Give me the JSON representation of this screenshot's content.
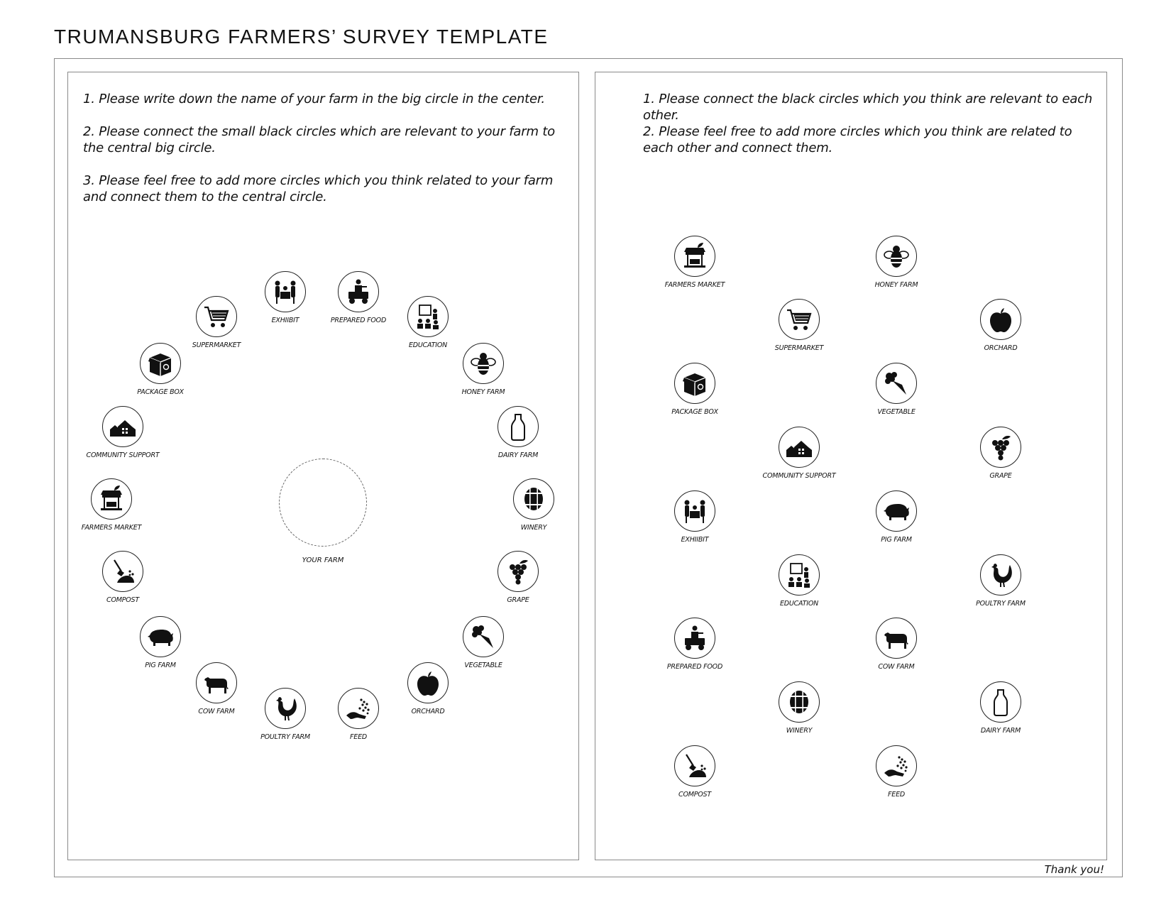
{
  "title": "TRUMANSBURG FARMERS’ SURVEY TEMPLATE",
  "left_panel": {
    "instructions": [
      "1. Please  write down the name of your farm in the big circle in the center.",
      "2. Please connect the small black circles which are relevant to your farm to the central big circle.",
      "3. Please feel free to add more circles which you think related to your farm and connect them to the central circle."
    ],
    "center_label": "YOUR FARM",
    "nodes": [
      {
        "label": "EXHIIBIT",
        "icon": "exhibit-icon"
      },
      {
        "label": "PREPARED FOOD",
        "icon": "prepared-food-icon"
      },
      {
        "label": "EDUCATION",
        "icon": "education-icon"
      },
      {
        "label": "HONEY FARM",
        "icon": "bee-icon"
      },
      {
        "label": "DAIRY FARM",
        "icon": "milk-bottle-icon"
      },
      {
        "label": "WINERY",
        "icon": "barrel-icon"
      },
      {
        "label": "GRAPE",
        "icon": "grape-icon"
      },
      {
        "label": "VEGETABLE",
        "icon": "vegetable-icon"
      },
      {
        "label": "ORCHARD",
        "icon": "apple-icon"
      },
      {
        "label": "FEED",
        "icon": "feed-icon"
      },
      {
        "label": "POULTRY FARM",
        "icon": "rooster-icon"
      },
      {
        "label": "COW FARM",
        "icon": "cow-icon"
      },
      {
        "label": "PIG FARM",
        "icon": "pig-icon"
      },
      {
        "label": "COMPOST",
        "icon": "compost-icon"
      },
      {
        "label": "FARMERS MARKET",
        "icon": "market-stall-icon"
      },
      {
        "label": "COMMUNITY SUPPORT",
        "icon": "houses-icon"
      },
      {
        "label": "PACKAGE BOX",
        "icon": "box-icon"
      },
      {
        "label": "SUPERMARKET",
        "icon": "cart-icon"
      }
    ]
  },
  "right_panel": {
    "instructions": [
      "1. Please connect the black circles which  you think are relevant to each other.",
      "2. Please feel free to add more circles which you think are related to each other and connect them."
    ],
    "nodes": [
      {
        "label": "FARMERS MARKET",
        "icon": "market-stall-icon"
      },
      {
        "label": "HONEY FARM",
        "icon": "bee-icon"
      },
      {
        "label": "SUPERMARKET",
        "icon": "cart-icon"
      },
      {
        "label": "ORCHARD",
        "icon": "apple-icon"
      },
      {
        "label": "PACKAGE BOX",
        "icon": "box-icon"
      },
      {
        "label": "VEGETABLE",
        "icon": "vegetable-icon"
      },
      {
        "label": "COMMUNITY SUPPORT",
        "icon": "houses-icon"
      },
      {
        "label": "GRAPE",
        "icon": "grape-icon"
      },
      {
        "label": "EXHIIBIT",
        "icon": "exhibit-icon"
      },
      {
        "label": "PIG FARM",
        "icon": "pig-icon"
      },
      {
        "label": "EDUCATION",
        "icon": "education-icon"
      },
      {
        "label": "POULTRY FARM",
        "icon": "rooster-icon"
      },
      {
        "label": "PREPARED FOOD",
        "icon": "prepared-food-icon"
      },
      {
        "label": "COW FARM",
        "icon": "cow-icon"
      },
      {
        "label": "WINERY",
        "icon": "barrel-icon"
      },
      {
        "label": "DAIRY FARM",
        "icon": "milk-bottle-icon"
      },
      {
        "label": "COMPOST",
        "icon": "compost-icon"
      },
      {
        "label": "FEED",
        "icon": "feed-icon"
      }
    ]
  },
  "footer": {
    "thanks": "Thank you!"
  }
}
